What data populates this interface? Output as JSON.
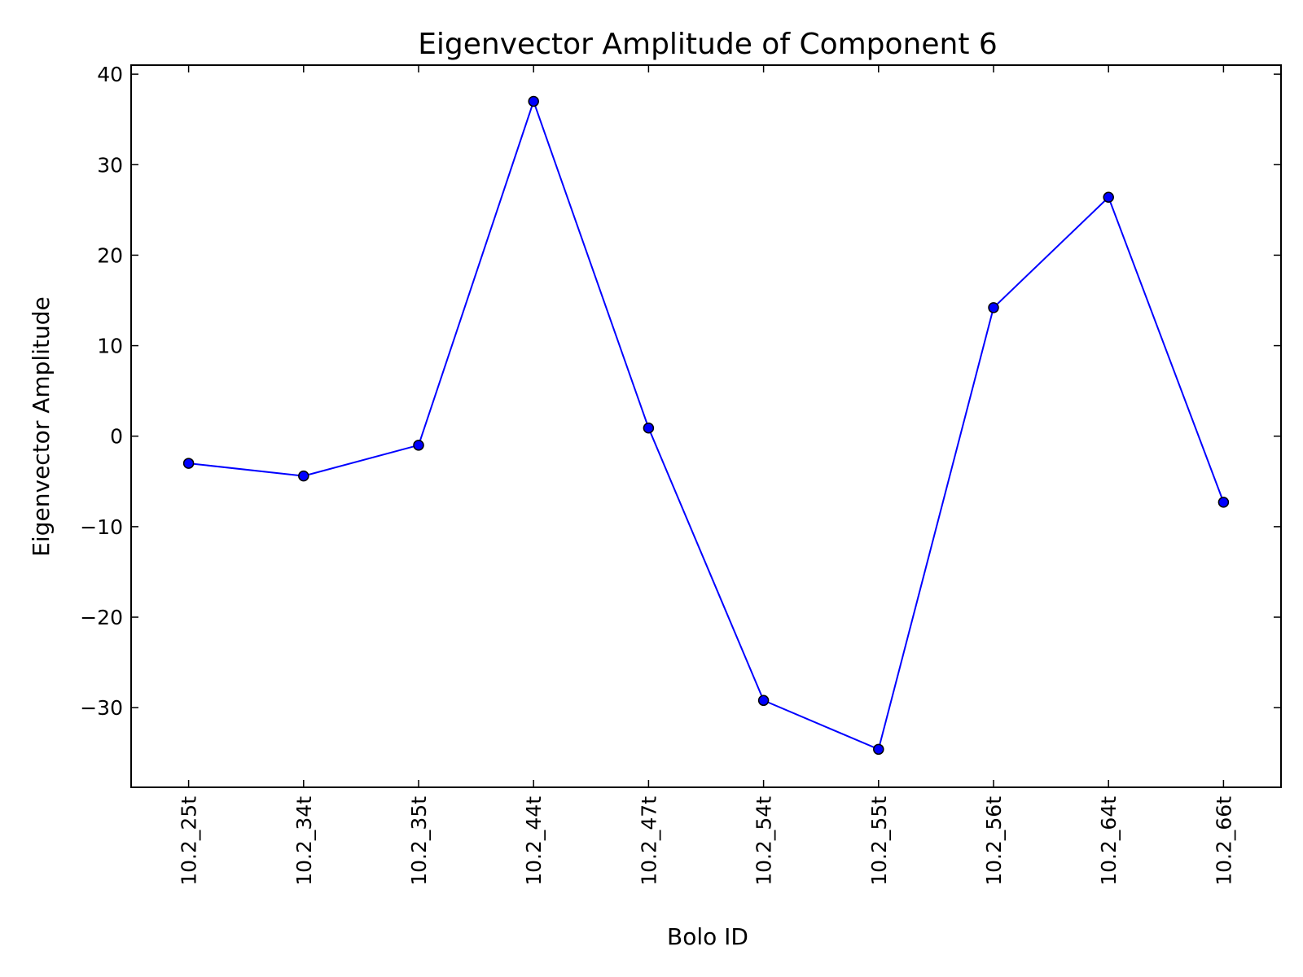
{
  "chart_data": {
    "type": "line",
    "title": "Eigenvector Amplitude of Component 6",
    "xlabel": "Bolo ID",
    "ylabel": "Eigenvector Amplitude",
    "categories": [
      "10.2_25t",
      "10.2_34t",
      "10.2_35t",
      "10.2_44t",
      "10.2_47t",
      "10.2_54t",
      "10.2_55t",
      "10.2_56t",
      "10.2_64t",
      "10.2_66t"
    ],
    "series": [
      {
        "values": [
          -3.0,
          -4.4,
          -1.0,
          37.0,
          0.9,
          -29.2,
          -34.6,
          14.2,
          26.4,
          -7.3
        ]
      }
    ],
    "ylim": [
      -38.8,
      41.0
    ],
    "yticks": [
      -30,
      -20,
      -10,
      0,
      10,
      20,
      30,
      40
    ],
    "line_color": "#0000ff",
    "marker_color": "#0000ff",
    "marker_edge_color": "#000000",
    "grid": false,
    "legend": "none"
  }
}
